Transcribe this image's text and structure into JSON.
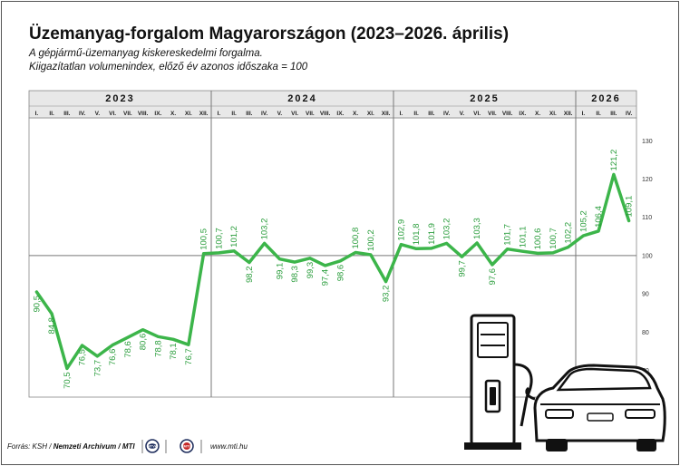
{
  "header": {
    "title": "Üzemanyag-forgalom Magyarországon (2023–2026. április)",
    "subtitle_1": "A gépjármű-üzemanyag kiskereskedelmi forgalma.",
    "subtitle_2": "Kiigazítatlan volumenindex, előző év azonos időszaka = 100"
  },
  "footer": {
    "source_prefix": "Forrás: KSH / ",
    "source_bold": "Nemzeti Archívum / MTI",
    "logo_1": "MTVA",
    "logo_2": "MTI",
    "url": "www.mti.hu"
  },
  "colors": {
    "line": "#3cb54a",
    "label": "#2a9d3c",
    "axis": "#999999"
  },
  "chart_data": {
    "type": "line",
    "title": "Üzemanyag-forgalom Magyarországon (2023–2026. április)",
    "xlabel": "",
    "ylabel": "",
    "ylim": [
      63,
      136
    ],
    "y_ticks": [
      70,
      80,
      90,
      100,
      110,
      120,
      130
    ],
    "grid": "vertical year separators and horizontal line at 100",
    "years": [
      {
        "label": "2023",
        "months": [
          "I.",
          "II.",
          "III.",
          "IV.",
          "V.",
          "VI.",
          "VII.",
          "VIII.",
          "IX.",
          "X.",
          "XI.",
          "XII."
        ]
      },
      {
        "label": "2024",
        "months": [
          "I.",
          "II.",
          "III.",
          "IV.",
          "V.",
          "VI.",
          "VII.",
          "VIII.",
          "IX.",
          "X.",
          "XI.",
          "XII."
        ]
      },
      {
        "label": "2025",
        "months": [
          "I.",
          "II.",
          "III.",
          "IV.",
          "V.",
          "VI.",
          "VII.",
          "VIII.",
          "IX.",
          "X.",
          "XI.",
          "XII."
        ]
      },
      {
        "label": "2026",
        "months": [
          "I.",
          "II.",
          "III.",
          "IV."
        ]
      }
    ],
    "series": [
      {
        "values": [
          90.5,
          84.8,
          70.5,
          76.5,
          73.7,
          76.6,
          78.6,
          80.6,
          78.8,
          78.1,
          76.7,
          100.5,
          100.7,
          101.2,
          98.2,
          103.2,
          99.1,
          98.3,
          99.3,
          97.4,
          98.6,
          100.8,
          100.2,
          93.2,
          102.9,
          101.8,
          101.9,
          103.2,
          99.7,
          103.3,
          97.6,
          101.7,
          101.1,
          100.6,
          100.7,
          102.2,
          105.2,
          106.4,
          121.2,
          109.1
        ],
        "labels": [
          "90,5",
          "84,8",
          "70,5",
          "76,5",
          "73,7",
          "76,6",
          "78,6",
          "80,6",
          "78,8",
          "78,1",
          "76,7",
          "100,5",
          "100,7",
          "101,2",
          "98,2",
          "103,2",
          "99,1",
          "98,3",
          "99,3",
          "97,4",
          "98,6",
          "100,8",
          "100,2",
          "93,2",
          "102,9",
          "101,8",
          "101,9",
          "103,2",
          "99,7",
          "103,3",
          "97,6",
          "101,7",
          "101,1",
          "100,6",
          "100,7",
          "102,2",
          "105,2",
          "106,4",
          "121,2",
          "109,1"
        ],
        "label_side": [
          "below",
          "below",
          "below",
          "below",
          "below",
          "below",
          "below",
          "below",
          "below",
          "below",
          "below",
          "above",
          "above",
          "above",
          "below",
          "above",
          "below",
          "below",
          "below",
          "below",
          "below",
          "above",
          "above",
          "below",
          "above",
          "above",
          "above",
          "above",
          "below",
          "above",
          "below",
          "above",
          "above",
          "above",
          "above",
          "above",
          "above",
          "above",
          "above",
          "above"
        ]
      }
    ]
  }
}
